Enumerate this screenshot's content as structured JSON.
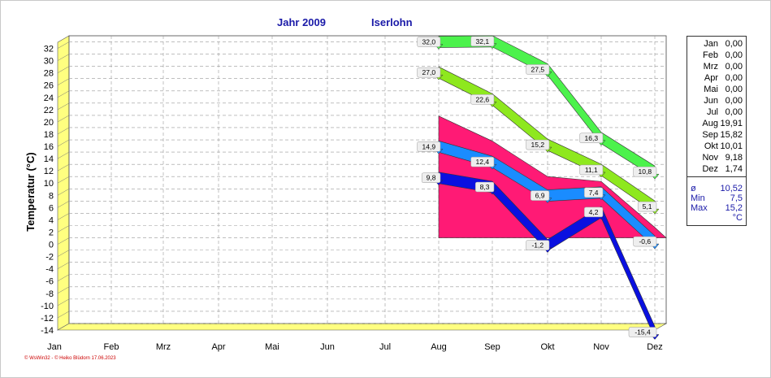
{
  "header": {
    "year_label": "Jahr  2009",
    "location": "Iserlohn"
  },
  "footer": {
    "credit": "© WsWin32  -  © Heiko Blüdorn  17.06.2023"
  },
  "legend": {
    "rows": [
      {
        "month": "Jan",
        "value": "0,00"
      },
      {
        "month": "Feb",
        "value": "0,00"
      },
      {
        "month": "Mrz",
        "value": "0,00"
      },
      {
        "month": "Apr",
        "value": "0,00"
      },
      {
        "month": "Mai",
        "value": "0,00"
      },
      {
        "month": "Jun",
        "value": "0,00"
      },
      {
        "month": "Jul",
        "value": "0,00"
      },
      {
        "month": "Aug",
        "value": "19,91"
      },
      {
        "month": "Sep",
        "value": "15,82"
      },
      {
        "month": "Okt",
        "value": "10,01"
      },
      {
        "month": "Nov",
        "value": "9,18"
      },
      {
        "month": "Dez",
        "value": "1,74"
      }
    ],
    "avg_symbol": "ø",
    "avg_value": "10,52",
    "min_label": "Min",
    "min_value": "7,5",
    "max_label": "Max",
    "max_value": "15,2",
    "unit": "°C"
  },
  "colors": {
    "area": "#ff1a75",
    "absolute_max": "#4cf24c",
    "mean_max": "#8ee81e",
    "mean": "#1a8cff",
    "mean_min": "#0a10e0",
    "absolute_min": "#0a10e0",
    "floor": "#ffff80",
    "grid": "#999999"
  },
  "chart_data": {
    "type": "line",
    "title": "",
    "ylabel": "Temperatur  (°C)",
    "xlabel": "",
    "ylim": [
      -14,
      33
    ],
    "yticks": [
      -14,
      -12,
      -10,
      -8,
      -6,
      -4,
      -2,
      0,
      2,
      4,
      6,
      8,
      10,
      12,
      14,
      16,
      18,
      20,
      22,
      24,
      26,
      28,
      30,
      32
    ],
    "categories": [
      "Jan",
      "Feb",
      "Mrz",
      "Apr",
      "Mai",
      "Jun",
      "Jul",
      "Aug",
      "Sep",
      "Okt",
      "Nov",
      "Dez"
    ],
    "area": {
      "values": [
        null,
        null,
        null,
        null,
        null,
        null,
        null,
        19.9,
        15.8,
        10.0,
        9.2,
        1.7
      ]
    },
    "series": [
      {
        "values": [
          null,
          null,
          null,
          null,
          null,
          null,
          null,
          32.0,
          32.1,
          27.5,
          16.3,
          10.8
        ],
        "labels": [
          "32,0",
          "32,1",
          "27,5",
          "16,3",
          "10,8"
        ]
      },
      {
        "values": [
          null,
          null,
          null,
          null,
          null,
          null,
          null,
          27.0,
          22.6,
          15.2,
          11.1,
          5.1
        ],
        "labels": [
          "27,0",
          "22,6",
          "15,2",
          "11,1",
          "5,1"
        ]
      },
      {
        "values": [
          null,
          null,
          null,
          null,
          null,
          null,
          null,
          14.9,
          12.4,
          6.9,
          7.4,
          -0.6
        ],
        "labels": [
          "14,9",
          "12,4",
          "6,9",
          "7,4",
          "-0,6"
        ]
      },
      {
        "values": [
          null,
          null,
          null,
          null,
          null,
          null,
          null,
          9.8,
          8.3,
          -1.2,
          4.2,
          -15.4
        ],
        "labels": [
          "9,8",
          "8,3",
          "-1,2",
          "4,2",
          "-15,4"
        ]
      }
    ]
  }
}
